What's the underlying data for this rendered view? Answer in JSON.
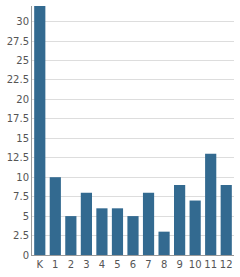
{
  "chart_data": {
    "type": "bar",
    "categories": [
      "K",
      "1",
      "2",
      "3",
      "4",
      "5",
      "6",
      "7",
      "8",
      "9",
      "10",
      "11",
      "12"
    ],
    "values": [
      32,
      10,
      5,
      8,
      6,
      6,
      5,
      8,
      3,
      9,
      7,
      13,
      9
    ],
    "color": "#336a90",
    "ylim": [
      0,
      32
    ],
    "yticks": [
      0,
      2.5,
      5,
      7.5,
      10,
      12.5,
      15,
      17.5,
      20,
      22.5,
      25,
      27.5,
      30
    ],
    "grid": true
  }
}
